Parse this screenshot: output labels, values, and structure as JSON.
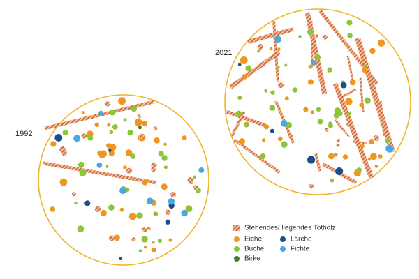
{
  "plots": [
    {
      "label": "1992"
    },
    {
      "label": "2021"
    }
  ],
  "legend": [
    {
      "label": "Stehendes/ liegendes Totholz"
    },
    {
      "label": "Eiche"
    },
    {
      "label": "Lärche"
    },
    {
      "label": "Buche"
    },
    {
      "label": "Fichte"
    },
    {
      "label": "Birke"
    }
  ]
}
